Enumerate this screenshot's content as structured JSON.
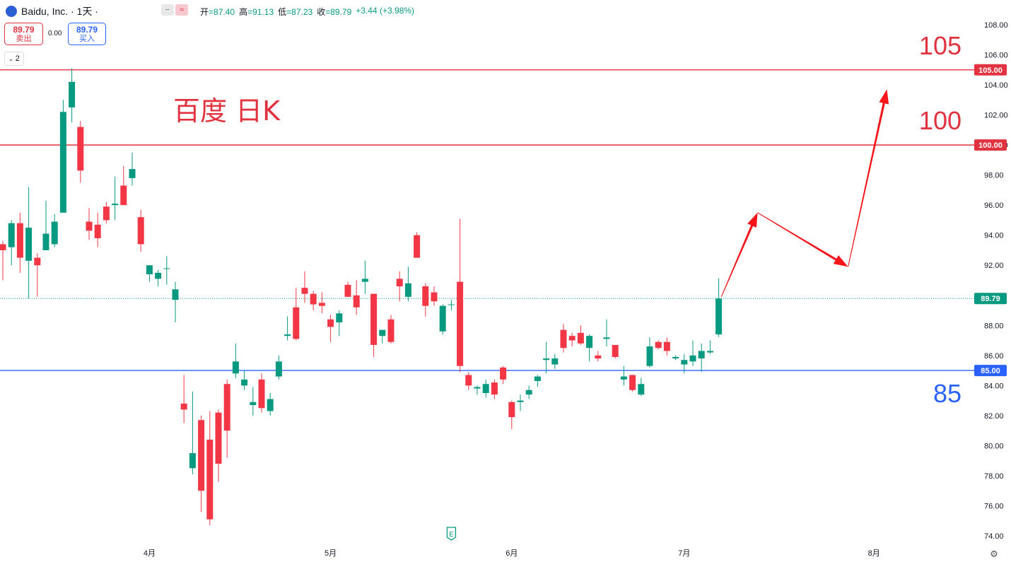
{
  "header": {
    "logo_glyph": "🐾",
    "symbol": "Baidu, Inc. · 1天 ·",
    "buttons": [
      "−",
      "≈"
    ],
    "ohlc": [
      {
        "k": "开",
        "v": "=87.40"
      },
      {
        "k": "高",
        "v": "=91.13"
      },
      {
        "k": "低",
        "v": "=87.23"
      },
      {
        "k": "收",
        "v": "=89.79"
      },
      {
        "k": "",
        "v": "+3.44 (+3.98%)"
      }
    ]
  },
  "trade": {
    "sell_price": "89.79",
    "sell_label": "卖出",
    "spread": "0.00",
    "buy_price": "89.79",
    "buy_label": "买入",
    "indicator_count": "2"
  },
  "colors": {
    "up": "#089981",
    "down": "#f23645",
    "red_line": "#e0323f",
    "blue_line": "#2962ff",
    "axis_text": "#131722"
  },
  "chart_data": {
    "type": "candlestick",
    "annotation": "百度 日K",
    "ylim": [
      73.5,
      109.5
    ],
    "y_ticks": [
      74,
      76,
      78,
      80,
      82,
      84,
      86,
      88,
      90,
      92,
      94,
      96,
      98,
      100,
      102,
      104,
      106,
      108
    ],
    "x_labels": [
      {
        "label": "4月",
        "index": 17
      },
      {
        "label": "5月",
        "index": 38
      },
      {
        "label": "6月",
        "index": 59
      },
      {
        "label": "7月",
        "index": 79
      },
      {
        "label": "8月",
        "index": 101
      }
    ],
    "candles": [
      [
        93.4,
        93.6,
        91.0,
        93.0
      ],
      [
        93.2,
        95.0,
        92.0,
        94.8
      ],
      [
        94.8,
        95.5,
        91.5,
        92.5
      ],
      [
        92.3,
        97.2,
        89.8,
        94.5
      ],
      [
        92.5,
        92.8,
        89.9,
        92.0
      ],
      [
        93.0,
        96.3,
        93.0,
        94.1
      ],
      [
        93.4,
        95.4,
        93.2,
        94.9
      ],
      [
        95.5,
        103.0,
        95.5,
        102.2
      ],
      [
        102.5,
        105.1,
        101.5,
        104.2
      ],
      [
        101.2,
        101.6,
        97.5,
        98.3
      ],
      [
        94.9,
        95.8,
        93.7,
        94.3
      ],
      [
        94.7,
        95.5,
        93.2,
        93.8
      ],
      [
        95.9,
        96.2,
        94.8,
        95.0
      ],
      [
        96.0,
        97.9,
        95.0,
        96.1
      ],
      [
        97.3,
        98.6,
        96.0,
        96.0
      ],
      [
        97.8,
        99.5,
        97.3,
        98.4
      ],
      [
        95.2,
        95.7,
        92.9,
        93.4
      ],
      [
        91.4,
        91.9,
        90.9,
        92.0
      ],
      [
        91.1,
        91.7,
        90.6,
        91.5
      ],
      [
        91.8,
        92.6,
        90.7,
        91.8
      ],
      [
        89.7,
        90.9,
        88.2,
        90.4
      ],
      [
        82.8,
        84.7,
        81.5,
        82.4
      ],
      [
        78.5,
        83.6,
        78.1,
        79.5
      ],
      [
        81.7,
        82.0,
        75.6,
        77.0
      ],
      [
        80.4,
        82.3,
        74.7,
        75.1
      ],
      [
        82.2,
        82.4,
        77.6,
        78.8
      ],
      [
        84.1,
        84.4,
        79.2,
        81.0
      ],
      [
        84.8,
        86.8,
        84.5,
        85.6
      ],
      [
        84.0,
        85.0,
        83.7,
        84.4
      ],
      [
        82.7,
        83.9,
        82.0,
        82.9
      ],
      [
        84.4,
        84.8,
        82.2,
        82.5
      ],
      [
        82.3,
        83.5,
        82.0,
        83.1
      ],
      [
        84.6,
        86.0,
        84.4,
        85.6
      ],
      [
        87.3,
        88.6,
        87.0,
        87.4
      ],
      [
        89.2,
        90.5,
        87.0,
        87.1
      ],
      [
        90.5,
        91.6,
        89.5,
        90.1
      ],
      [
        90.1,
        90.3,
        89.0,
        89.4
      ],
      [
        89.5,
        90.2,
        88.8,
        89.3
      ],
      [
        88.4,
        88.7,
        86.9,
        87.9
      ],
      [
        88.2,
        89.0,
        87.3,
        88.8
      ],
      [
        90.7,
        90.9,
        89.9,
        89.9
      ],
      [
        90.0,
        91.0,
        88.7,
        89.2
      ],
      [
        90.9,
        92.3,
        90.1,
        91.1
      ],
      [
        90.1,
        90.1,
        85.9,
        86.7
      ],
      [
        87.3,
        87.7,
        86.8,
        87.7
      ],
      [
        88.4,
        88.7,
        86.8,
        86.9
      ],
      [
        91.1,
        91.6,
        89.6,
        90.6
      ],
      [
        89.9,
        91.9,
        89.6,
        90.8
      ],
      [
        94.0,
        94.2,
        92.5,
        92.5
      ],
      [
        90.6,
        90.8,
        88.6,
        89.3
      ],
      [
        90.2,
        90.6,
        89.3,
        89.6
      ],
      [
        87.6,
        89.4,
        87.4,
        89.3
      ],
      [
        89.4,
        89.7,
        89.0,
        89.4
      ],
      [
        90.9,
        95.1,
        84.9,
        85.3
      ],
      [
        84.7,
        84.9,
        83.7,
        84.0
      ],
      [
        83.8,
        84.0,
        83.4,
        83.9
      ],
      [
        83.5,
        84.4,
        83.2,
        84.1
      ],
      [
        84.2,
        84.4,
        83.1,
        83.4
      ],
      [
        85.2,
        85.3,
        84.1,
        84.4
      ],
      [
        82.9,
        83.0,
        81.1,
        81.9
      ],
      [
        82.9,
        83.4,
        82.3,
        83.0
      ],
      [
        83.4,
        84.0,
        83.1,
        83.7
      ],
      [
        84.3,
        84.7,
        83.9,
        84.6
      ],
      [
        85.7,
        86.9,
        84.8,
        85.8
      ],
      [
        85.4,
        86.1,
        85.1,
        85.8
      ],
      [
        87.7,
        88.1,
        86.2,
        86.5
      ],
      [
        87.3,
        87.5,
        86.6,
        87.0
      ],
      [
        87.5,
        88.0,
        86.7,
        86.8
      ],
      [
        86.5,
        87.4,
        85.6,
        87.3
      ],
      [
        86.0,
        86.3,
        85.6,
        85.8
      ],
      [
        87.1,
        88.4,
        86.6,
        87.2
      ],
      [
        86.7,
        86.7,
        85.8,
        85.9
      ],
      [
        84.4,
        85.3,
        84.0,
        84.6
      ],
      [
        84.7,
        84.7,
        83.6,
        83.7
      ],
      [
        83.4,
        84.5,
        83.3,
        84.1
      ],
      [
        85.3,
        87.2,
        85.2,
        86.6
      ],
      [
        86.9,
        87.0,
        86.4,
        86.5
      ],
      [
        86.9,
        87.2,
        86.0,
        86.3
      ],
      [
        85.8,
        86.0,
        85.7,
        85.9
      ],
      [
        85.4,
        86.1,
        84.8,
        85.7
      ],
      [
        85.6,
        87.0,
        85.3,
        86.0
      ],
      [
        85.8,
        86.8,
        84.9,
        86.3
      ],
      [
        86.2,
        87.0,
        86.1,
        86.3
      ],
      [
        87.4,
        91.13,
        87.23,
        89.79
      ]
    ],
    "horizontal_lines": [
      {
        "value": 105.0,
        "tag": "105.00",
        "label": "105",
        "color": "red"
      },
      {
        "value": 100.0,
        "tag": "100.00",
        "label": "100",
        "color": "red"
      },
      {
        "value": 85.0,
        "tag": "85.00",
        "label": "85",
        "color": "blue"
      }
    ],
    "last_price": 89.79,
    "last_price_tag": "89.79",
    "projection": [
      {
        "index": 83.3,
        "price": 89.9
      },
      {
        "index": 87.5,
        "price": 95.5
      },
      {
        "index": 98.0,
        "price": 91.9
      },
      {
        "index": 102.5,
        "price": 103.7
      }
    ],
    "earnings_marker": {
      "glyph": "E",
      "index": 52
    },
    "settings_glyph": "⚙"
  }
}
